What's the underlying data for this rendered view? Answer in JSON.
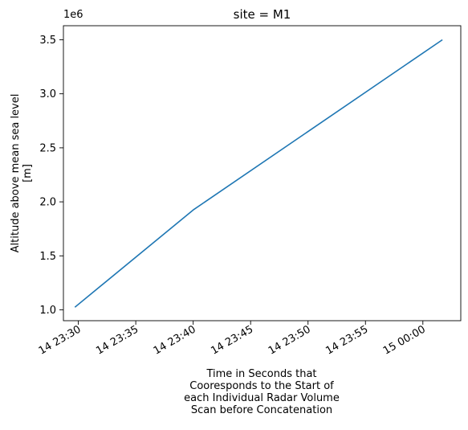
{
  "chart_data": {
    "type": "line",
    "title": "site = M1",
    "xlabel_lines": [
      "Time in Seconds that",
      "Cooresponds to the Start of",
      "each Individual Radar Volume",
      "Scan before Concatenation"
    ],
    "ylabel_lines": [
      "Altitude above mean sea level",
      "[m]"
    ],
    "y_offset_label": "1e6",
    "line_color": "#1f77b4",
    "x_unit": "minutes after 14 23:30",
    "xlim": [
      -1.3,
      33.3
    ],
    "ylim": [
      0.9,
      3.63
    ],
    "x_ticks": [
      {
        "value": 0,
        "label": "14 23:30"
      },
      {
        "value": 5,
        "label": "14 23:35"
      },
      {
        "value": 10,
        "label": "14 23:40"
      },
      {
        "value": 15,
        "label": "14 23:45"
      },
      {
        "value": 20,
        "label": "14 23:50"
      },
      {
        "value": 25,
        "label": "14 23:55"
      },
      {
        "value": 30,
        "label": "15 00:00"
      }
    ],
    "y_ticks": [
      {
        "value": 1.0,
        "label": "1.0"
      },
      {
        "value": 1.5,
        "label": "1.5"
      },
      {
        "value": 2.0,
        "label": "2.0"
      },
      {
        "value": 2.5,
        "label": "2.5"
      },
      {
        "value": 3.0,
        "label": "3.0"
      },
      {
        "value": 3.5,
        "label": "3.5"
      }
    ],
    "series": [
      {
        "x": [
          -0.3,
          10.0,
          31.7
        ],
        "y": [
          1.025,
          1.925,
          3.5
        ]
      }
    ]
  }
}
